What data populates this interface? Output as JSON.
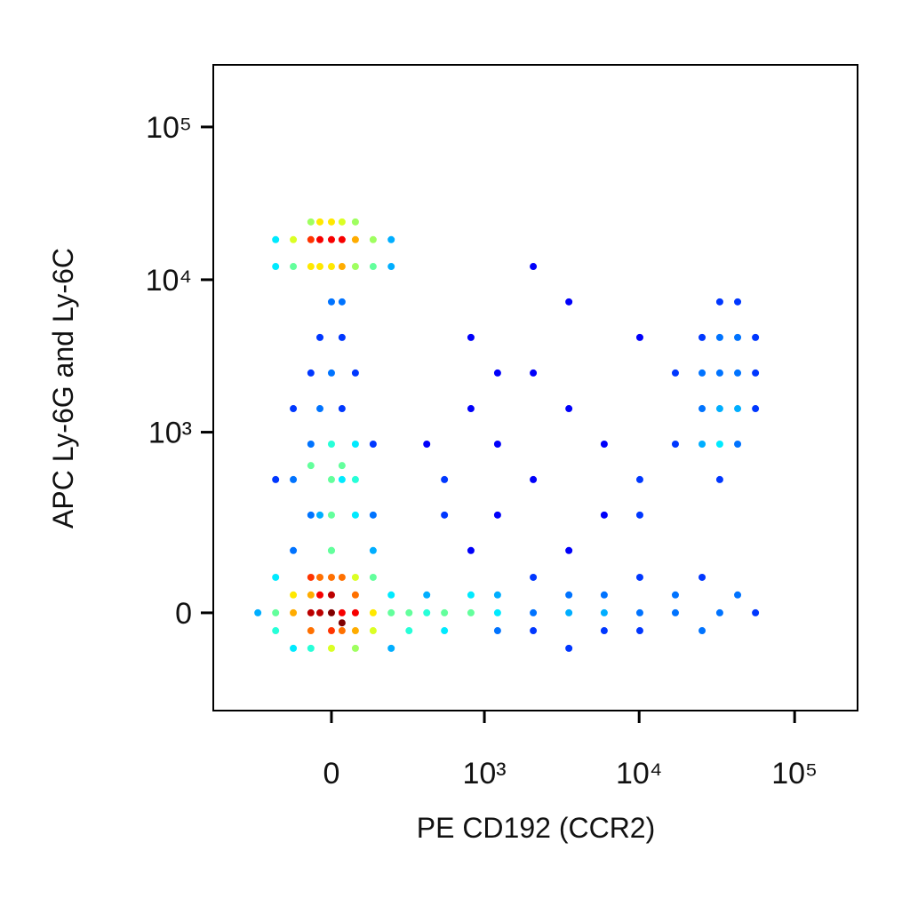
{
  "chart_data": {
    "type": "scatter",
    "x_label": "PE CD192 (CCR2)",
    "y_label": "APC Ly-6G and Ly-6C",
    "xscale": "biexponential",
    "yscale": "biexponential",
    "colormap": "jet",
    "xlim": [
      -586,
      254000
    ],
    "ylim": [
      -273,
      255000
    ],
    "xticks": [
      0,
      {
        "value": 1000,
        "label": "10³"
      },
      {
        "value": 10000,
        "label": "10⁴"
      },
      {
        "value": 100000,
        "label": "10⁵"
      }
    ],
    "yticks": [
      0,
      {
        "value": 1000,
        "label": "10³"
      },
      {
        "value": 10000,
        "label": "10⁴"
      },
      {
        "value": 100000,
        "label": "10⁵"
      }
    ],
    "x": [
      0,
      -36,
      33,
      -36,
      33,
      0,
      0,
      76,
      -65,
      -65,
      76,
      -65,
      76,
      138,
      -125,
      -125,
      138,
      -194,
      211,
      211,
      -194,
      0,
      33,
      -36,
      76,
      -65,
      0,
      -65,
      76,
      138,
      -125,
      298,
      -277,
      298,
      138,
      -125,
      0,
      211,
      -194,
      33,
      405,
      405,
      540,
      540,
      815,
      815,
      1220,
      1220,
      1220,
      2080,
      2080,
      2080,
      3530,
      3530,
      3530,
      5960,
      5960,
      5960,
      10100,
      10100,
      10100,
      17100,
      17100,
      25400,
      25400,
      33000,
      43000,
      56000,
      815,
      3530,
      -65,
      0,
      76,
      -125,
      0,
      33,
      76,
      -65,
      0,
      76,
      -36,
      33,
      -125,
      0,
      76,
      -65,
      33,
      -36,
      138,
      -194,
      138,
      0,
      -36,
      33,
      -65,
      0,
      -36,
      33,
      -65,
      76,
      0,
      -36,
      33,
      76,
      -65,
      0,
      33,
      -125,
      138,
      -125,
      138,
      0,
      33,
      -194,
      211,
      -65,
      76,
      -36,
      211,
      -194,
      33000,
      33000,
      25400,
      43000,
      43000,
      33000,
      25400,
      43000,
      33000,
      56000,
      25400,
      33000,
      43000,
      56000,
      33000,
      43000,
      25400,
      56000,
      540,
      815,
      1220,
      2080,
      3530,
      5960,
      10100,
      17100,
      1220,
      2080,
      5960,
      10100,
      815,
      3530,
      17100,
      540,
      405,
      2080,
      10100,
      1220
    ],
    "y": [
      0,
      0,
      0,
      36,
      -36,
      36,
      -36,
      0,
      0,
      36,
      36,
      -36,
      -36,
      0,
      0,
      36,
      -36,
      0,
      0,
      36,
      -36,
      74,
      74,
      74,
      74,
      74,
      -74,
      -74,
      -74,
      74,
      -74,
      0,
      0,
      -36,
      143,
      143,
      143,
      -74,
      74,
      -20,
      0,
      36,
      -36,
      0,
      0,
      36,
      -36,
      36,
      0,
      0,
      74,
      -36,
      0,
      36,
      -74,
      0,
      36,
      -36,
      0,
      74,
      -36,
      0,
      36,
      -36,
      74,
      0,
      36,
      0,
      143,
      143,
      273,
      273,
      273,
      483,
      483,
      483,
      483,
      834,
      834,
      834,
      1430,
      1430,
      1430,
      2450,
      2450,
      2450,
      4190,
      4190,
      273,
      483,
      834,
      143,
      273,
      600,
      600,
      18300,
      18300,
      18300,
      18300,
      18300,
      12200,
      12200,
      12200,
      12200,
      23900,
      23900,
      23900,
      18300,
      18300,
      12200,
      12200,
      7160,
      7160,
      18300,
      18300,
      12200,
      23900,
      23900,
      12200,
      12200,
      2450,
      4190,
      4190,
      2450,
      1430,
      1430,
      2450,
      4190,
      7160,
      4190,
      834,
      834,
      834,
      1430,
      483,
      7160,
      1430,
      2450,
      483,
      1430,
      834,
      2450,
      1430,
      834,
      4190,
      2450,
      273,
      483,
      273,
      483,
      4190,
      7160,
      834,
      273,
      834,
      12200,
      273,
      2450
    ]
  }
}
